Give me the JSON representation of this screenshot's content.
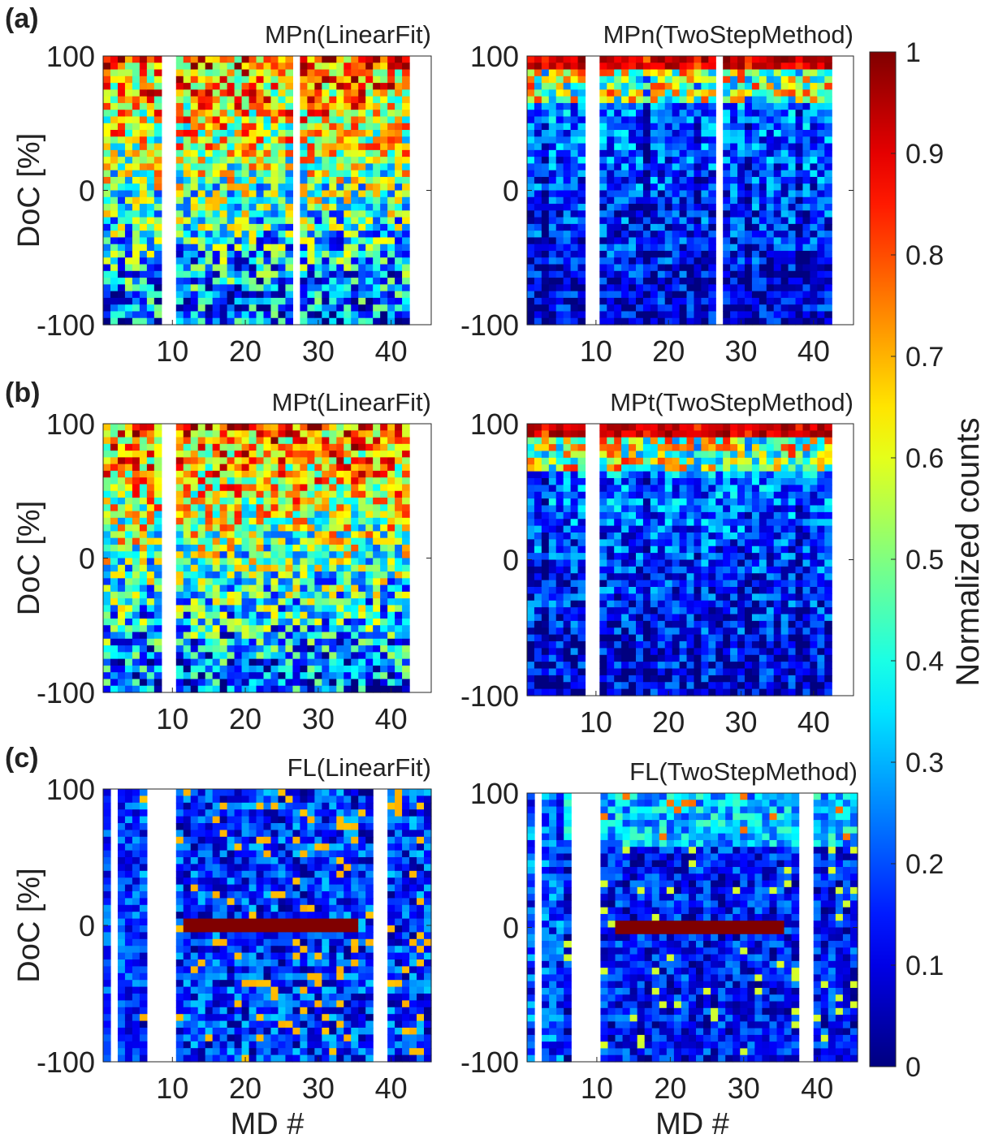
{
  "chart_data": [
    {
      "type": "heatmap",
      "panel_label": "(a)",
      "title": "MPn(LinearFit)",
      "xlabel": "",
      "ylabel": "DoC [%]",
      "xlim": [
        1,
        45
      ],
      "ylim": [
        -100,
        100
      ],
      "x_ticks": [
        "10",
        "20",
        "30",
        "40"
      ],
      "y_ticks": [
        "100",
        "0",
        "-100"
      ],
      "n_md": 42,
      "n_doc_bins": 40,
      "empty_columns": [
        9,
        10,
        27
      ],
      "hot_rows": [],
      "pattern": "linear"
    },
    {
      "type": "heatmap",
      "panel_label": "",
      "title": "MPn(TwoStepMethod)",
      "xlabel": "",
      "ylabel": "",
      "xlim": [
        1,
        45
      ],
      "ylim": [
        -100,
        100
      ],
      "x_ticks": [
        "10",
        "20",
        "30",
        "40"
      ],
      "y_ticks": [
        "100",
        "0",
        "-100"
      ],
      "n_md": 42,
      "n_doc_bins": 40,
      "empty_columns": [
        9,
        10,
        27
      ],
      "hot_rows": [],
      "pattern": "twostep"
    },
    {
      "type": "heatmap",
      "panel_label": "(b)",
      "title": "MPt(LinearFit)",
      "xlabel": "",
      "ylabel": "DoC [%]",
      "xlim": [
        1,
        45
      ],
      "ylim": [
        -100,
        100
      ],
      "x_ticks": [
        "10",
        "20",
        "30",
        "40"
      ],
      "y_ticks": [
        "100",
        "0",
        "-100"
      ],
      "n_md": 42,
      "n_doc_bins": 40,
      "empty_columns": [
        9,
        10
      ],
      "hot_rows": [],
      "pattern": "linear"
    },
    {
      "type": "heatmap",
      "panel_label": "",
      "title": "MPt(TwoStepMethod)",
      "xlabel": "",
      "ylabel": "",
      "xlim": [
        1,
        45
      ],
      "ylim": [
        -100,
        100
      ],
      "x_ticks": [
        "10",
        "20",
        "30",
        "40"
      ],
      "y_ticks": [
        "100",
        "0",
        "-100"
      ],
      "n_md": 42,
      "n_doc_bins": 40,
      "empty_columns": [
        9,
        10
      ],
      "hot_rows": [],
      "pattern": "twostep"
    },
    {
      "type": "heatmap",
      "panel_label": "(c)",
      "title": "FL(LinearFit)",
      "xlabel": "MD #",
      "ylabel": "DoC [%]",
      "xlim": [
        1,
        45
      ],
      "ylim": [
        -100,
        100
      ],
      "x_ticks": [
        "10",
        "20",
        "30",
        "40"
      ],
      "y_ticks": [
        "100",
        "0",
        "-100"
      ],
      "n_md": 45,
      "n_doc_bins": 40,
      "empty_columns": [
        2,
        7,
        8,
        9,
        10,
        38,
        39
      ],
      "hot_rows": [
        {
          "doc": 0,
          "md_from": 12,
          "md_to": 35
        }
      ],
      "pattern": "fl_linear"
    },
    {
      "type": "heatmap",
      "panel_label": "",
      "title": "FL(TwoStepMethod)",
      "xlabel": "MD #",
      "ylabel": "",
      "xlim": [
        1,
        45
      ],
      "ylim": [
        -100,
        100
      ],
      "x_ticks": [
        "10",
        "20",
        "30",
        "40"
      ],
      "y_ticks": [
        "100",
        "0",
        "-100"
      ],
      "n_md": 45,
      "n_doc_bins": 40,
      "empty_columns": [
        2,
        7,
        8,
        9,
        10,
        38,
        39
      ],
      "hot_rows": [
        {
          "doc": 0,
          "md_from": 13,
          "md_to": 35
        }
      ],
      "pattern": "fl_twostep"
    }
  ],
  "colorbar": {
    "label": "Normalized counts",
    "range": [
      0,
      1
    ],
    "ticks": [
      "0",
      "0.1",
      "0.2",
      "0.3",
      "0.4",
      "0.5",
      "0.6",
      "0.7",
      "0.8",
      "0.9",
      "1"
    ],
    "colormap": "jet"
  },
  "colors": {
    "axis": "#262626",
    "empty": "#ffffff"
  }
}
